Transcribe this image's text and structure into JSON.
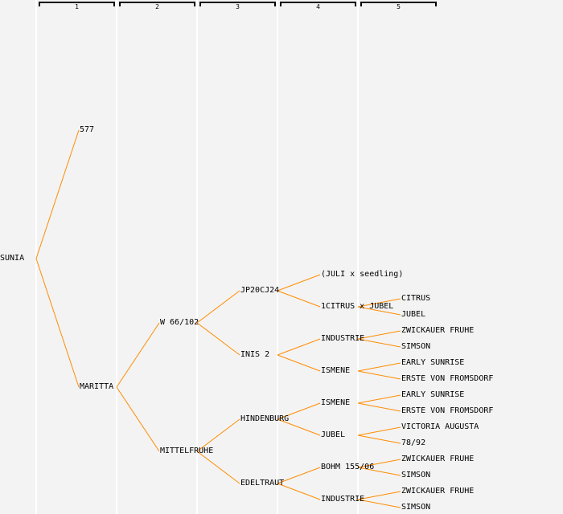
{
  "generations": [
    "1",
    "2",
    "3",
    "4",
    "5"
  ],
  "line_color": "#ff8c00",
  "tree": {
    "name": "SUNIA",
    "parents": [
      {
        "name": "577",
        "parents": []
      },
      {
        "name": "MARITTA",
        "parents": [
          {
            "name": "W 66/102",
            "parents": [
              {
                "name": "JP20CJ24",
                "parents": [
                  {
                    "name": "(JULI x seedling)",
                    "parents": []
                  },
                  {
                    "name": "1CITRUS x JUBEL",
                    "parents": [
                      {
                        "name": "CITRUS",
                        "parents": []
                      },
                      {
                        "name": "JUBEL",
                        "parents": []
                      }
                    ]
                  }
                ]
              },
              {
                "name": "INIS 2",
                "parents": [
                  {
                    "name": "INDUSTRIE",
                    "parents": [
                      {
                        "name": "ZWICKAUER FRUHE",
                        "parents": []
                      },
                      {
                        "name": "SIMSON",
                        "parents": []
                      }
                    ]
                  },
                  {
                    "name": "ISMENE",
                    "parents": [
                      {
                        "name": "EARLY SUNRISE",
                        "parents": []
                      },
                      {
                        "name": "ERSTE VON FROMSDORF",
                        "parents": []
                      }
                    ]
                  }
                ]
              }
            ]
          },
          {
            "name": "MITTELFRUHE",
            "parents": [
              {
                "name": "HINDENBURG",
                "parents": [
                  {
                    "name": "ISMENE",
                    "parents": [
                      {
                        "name": "EARLY SUNRISE",
                        "parents": []
                      },
                      {
                        "name": "ERSTE VON FROMSDORF",
                        "parents": []
                      }
                    ]
                  },
                  {
                    "name": "JUBEL",
                    "parents": [
                      {
                        "name": "VICTORIA AUGUSTA",
                        "parents": []
                      },
                      {
                        "name": "78/92",
                        "parents": []
                      }
                    ]
                  }
                ]
              },
              {
                "name": "EDELTRAUT",
                "parents": [
                  {
                    "name": "BOHM 155/06",
                    "parents": [
                      {
                        "name": "ZWICKAUER FRUHE",
                        "parents": []
                      },
                      {
                        "name": "SIMSON",
                        "parents": []
                      }
                    ]
                  },
                  {
                    "name": "INDUSTRIE",
                    "parents": [
                      {
                        "name": "ZWICKAUER FRUHE",
                        "parents": []
                      },
                      {
                        "name": "SIMSON",
                        "parents": []
                      }
                    ]
                  }
                ]
              }
            ]
          }
        ]
      }
    ]
  }
}
